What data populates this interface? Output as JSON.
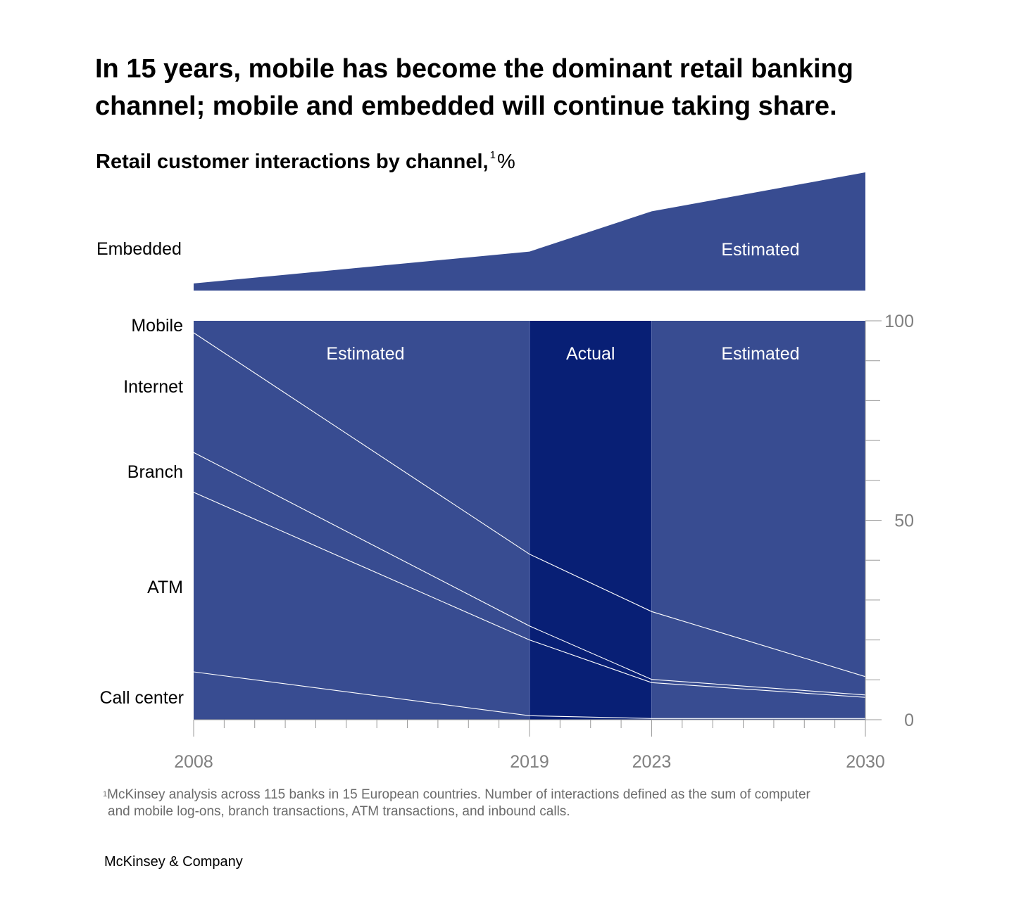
{
  "header": {
    "title_line1": "In 15 years, mobile has become the dominant retail banking",
    "title_line2": "channel; mobile and embedded will continue taking share.",
    "subtitle": "Retail customer interactions by channel,",
    "subtitle_footnote_mark": "1",
    "subtitle_unit": "%"
  },
  "footnote": {
    "mark": "1",
    "line1": "McKinsey analysis across 115 banks in 15 European countries. Number of interactions defined as the sum of computer",
    "line2": "and mobile log-ons, branch transactions, ATM transactions, and inbound calls."
  },
  "brand": "McKinsey & Company",
  "colors": {
    "estimated_fill": "#384c91",
    "actual_fill": "#081f75",
    "boundary_line": "#ffffff",
    "axis_text": "#808080"
  },
  "chart_data": [
    {
      "type": "area",
      "name": "embedded",
      "label": "Embedded",
      "region_label": "Estimated",
      "x": [
        2008,
        2019,
        2023,
        2030
      ],
      "relative_height": [
        0.06,
        0.33,
        0.67,
        1.0
      ]
    },
    {
      "type": "area",
      "stacked": true,
      "y_unit": "%",
      "x": [
        2008,
        2019,
        2023,
        2030
      ],
      "x_ticks": [
        "2008",
        "2019",
        "2023",
        "2030"
      ],
      "minor_ticks_per_year": 1,
      "ylim": [
        0,
        100
      ],
      "y_ticks": [
        0,
        50,
        100
      ],
      "y_minor_step": 10,
      "y_axis_position": "right",
      "periods": [
        {
          "label": "Estimated",
          "from": 2008,
          "to": 2019,
          "kind": "estimated"
        },
        {
          "label": "Actual",
          "from": 2019,
          "to": 2023,
          "kind": "actual"
        },
        {
          "label": "Estimated",
          "from": 2023,
          "to": 2030,
          "kind": "estimated"
        }
      ],
      "series": [
        {
          "name": "Call center",
          "values": [
            12,
            1,
            0.3,
            0.3
          ]
        },
        {
          "name": "ATM",
          "values": [
            45,
            19,
            9,
            5.3
          ]
        },
        {
          "name": "Branch",
          "values": [
            10,
            3.5,
            0.8,
            0.6
          ]
        },
        {
          "name": "Internet",
          "values": [
            30,
            18,
            17,
            4.6
          ]
        },
        {
          "name": "Mobile",
          "values": [
            3,
            58.5,
            72.9,
            89.2
          ]
        }
      ]
    }
  ]
}
